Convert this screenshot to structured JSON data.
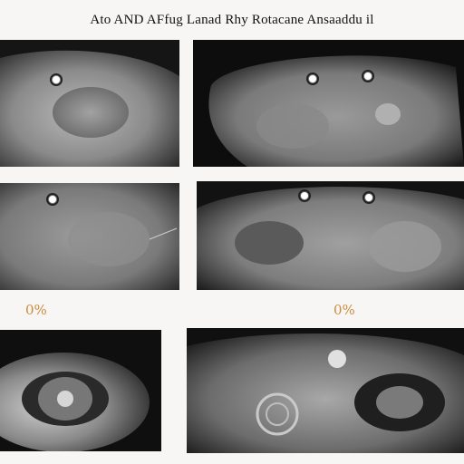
{
  "title": "Ato  AND  AFfug Lanad Rhy Rotacane Ansaaddu il",
  "panels": [
    {
      "icon": "ear-closeup-image"
    },
    {
      "icon": "ear-closeup-image"
    },
    {
      "icon": "ear-closeup-image"
    },
    {
      "icon": "ear-closeup-image"
    },
    {
      "icon": "eye-closeup-image"
    },
    {
      "icon": "eye-closeup-image"
    }
  ],
  "labels": {
    "left_percent": "0%",
    "right_percent": "0%"
  },
  "colors": {
    "background": "#f7f6f4",
    "panel": "#0b0b0b",
    "percent_text": "#c98c3e"
  }
}
